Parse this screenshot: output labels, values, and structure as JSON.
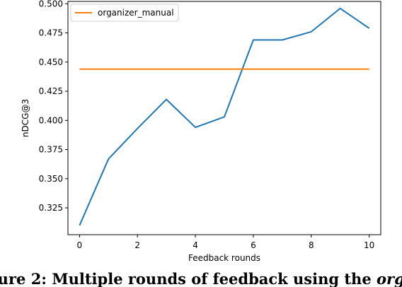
{
  "chart_data": {
    "type": "line",
    "xlabel": "Feedback rounds",
    "ylabel": "nDCG@3",
    "xlim": [
      -0.4,
      10.4
    ],
    "ylim": [
      0.302,
      0.502
    ],
    "xticks": [
      "0",
      "2",
      "4",
      "6",
      "8",
      "10"
    ],
    "yticks": [
      "0.325",
      "0.350",
      "0.375",
      "0.400",
      "0.425",
      "0.450",
      "0.475",
      "0.500"
    ],
    "legend_position": "top-left",
    "grid": false,
    "series": [
      {
        "name": "",
        "color": "#1f77b4",
        "x": [
          0,
          1,
          2,
          3,
          4,
          5,
          6,
          7,
          8,
          9,
          10
        ],
        "values": [
          0.31,
          0.367,
          0.393,
          0.418,
          0.394,
          0.403,
          0.469,
          0.469,
          0.476,
          0.496,
          0.479
        ]
      },
      {
        "name": "organizer_manual",
        "color": "#ff7f0e",
        "x": [
          0,
          10
        ],
        "values": [
          0.444,
          0.444
        ]
      }
    ]
  },
  "caption": {
    "bold_text": "gure 2: Multiple rounds of feedback using the ",
    "italic_text": "org"
  }
}
